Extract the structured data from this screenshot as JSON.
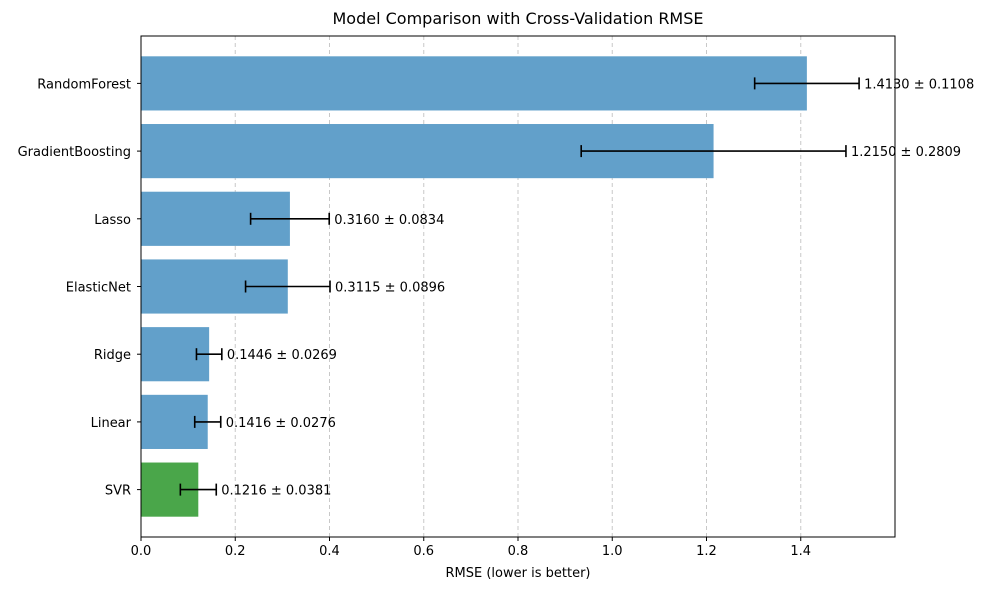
{
  "chart_data": {
    "type": "bar",
    "orientation": "horizontal",
    "title": "Model Comparison with Cross-Validation RMSE",
    "xlabel": "RMSE (lower is better)",
    "ylabel": "",
    "xlim": [
      0,
      1.6
    ],
    "xticks": [
      "0.0",
      "0.2",
      "0.4",
      "0.6",
      "0.8",
      "1.0",
      "1.2",
      "1.4"
    ],
    "grid": "x-dashed",
    "categories": [
      "RandomForest",
      "GradientBoosting",
      "Lasso",
      "ElasticNet",
      "Ridge",
      "Linear",
      "SVR"
    ],
    "values": [
      1.413,
      1.215,
      0.316,
      0.3115,
      0.1446,
      0.1416,
      0.1216
    ],
    "errors": [
      0.1108,
      0.2809,
      0.0834,
      0.0896,
      0.0269,
      0.0276,
      0.0381
    ],
    "data_labels": [
      "1.4130 ± 0.1108",
      "1.2150 ± 0.2809",
      "0.3160 ± 0.0834",
      "0.3115 ± 0.0896",
      "0.1446 ± 0.0269",
      "0.1416 ± 0.0276",
      "0.1216 ± 0.0381"
    ],
    "bar_color": "#62a0ca",
    "highlight_color": "#4aa64a",
    "highlight_category": "SVR"
  }
}
